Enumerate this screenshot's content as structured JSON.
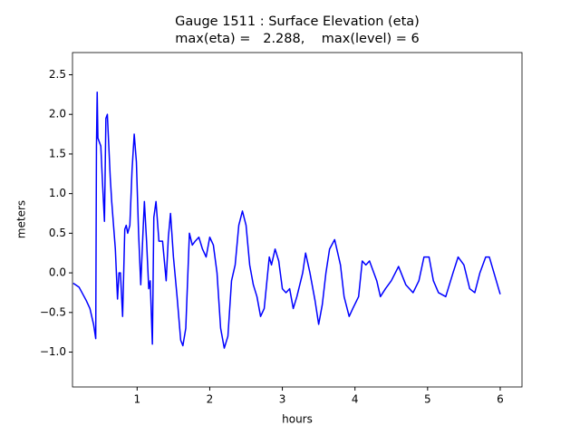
{
  "chart_data": {
    "type": "line",
    "title": "Gauge 1511 : Surface Elevation (eta)",
    "subtitle": "max(eta) =   2.288,    max(level) = 6",
    "xlabel": "hours",
    "ylabel": "meters",
    "xlim": [
      0.11,
      6.3
    ],
    "ylim": [
      -1.44,
      2.78
    ],
    "xticks": [
      1,
      2,
      3,
      4,
      5,
      6
    ],
    "yticks": [
      {
        "value": -1,
        "label": "−1.0"
      },
      {
        "value": -0.5,
        "label": "−0.5"
      },
      {
        "value": 0,
        "label": "0.0"
      },
      0.5,
      {
        "value": 1,
        "label": "1.0"
      },
      1.5,
      {
        "value": 2,
        "label": "2.0"
      },
      2.5
    ],
    "grid": false,
    "series": [
      {
        "color": "#0000ff",
        "x": [
          0.12,
          0.2,
          0.3,
          0.35,
          0.4,
          0.43,
          0.44,
          0.45,
          0.46,
          0.48,
          0.5,
          0.52,
          0.55,
          0.57,
          0.59,
          0.6,
          0.63,
          0.65,
          0.7,
          0.73,
          0.75,
          0.77,
          0.8,
          0.83,
          0.85,
          0.87,
          0.9,
          0.93,
          0.96,
          0.99,
          1.02,
          1.05,
          1.08,
          1.1,
          1.13,
          1.16,
          1.18,
          1.21,
          1.23,
          1.26,
          1.3,
          1.35,
          1.4,
          1.43,
          1.46,
          1.5,
          1.55,
          1.6,
          1.63,
          1.67,
          1.72,
          1.76,
          1.8,
          1.85,
          1.9,
          1.95,
          2.0,
          2.05,
          2.1,
          2.15,
          2.2,
          2.25,
          2.3,
          2.35,
          2.4,
          2.45,
          2.5,
          2.55,
          2.6,
          2.65,
          2.7,
          2.75,
          2.82,
          2.85,
          2.9,
          2.95,
          3.0,
          3.05,
          3.1,
          3.15,
          3.2,
          3.28,
          3.32,
          3.38,
          3.45,
          3.5,
          3.55,
          3.6,
          3.65,
          3.72,
          3.8,
          3.85,
          3.92,
          3.97,
          4.05,
          4.1,
          4.15,
          4.2,
          4.3,
          4.35,
          4.42,
          4.5,
          4.6,
          4.7,
          4.8,
          4.88,
          4.95,
          5.02,
          5.08,
          5.15,
          5.25,
          5.35,
          5.42,
          5.5,
          5.58,
          5.65,
          5.72,
          5.8,
          5.85,
          5.93,
          6.0
        ],
        "values": [
          -0.13,
          -0.18,
          -0.35,
          -0.45,
          -0.65,
          -0.83,
          1.6,
          2.28,
          1.7,
          1.65,
          1.6,
          1.2,
          0.65,
          1.95,
          2.0,
          1.8,
          1.2,
          0.9,
          0.3,
          -0.33,
          0.0,
          0.0,
          -0.55,
          0.55,
          0.6,
          0.5,
          0.6,
          1.3,
          1.75,
          1.4,
          0.5,
          -0.15,
          0.5,
          0.9,
          0.4,
          -0.2,
          -0.1,
          -0.9,
          0.7,
          0.9,
          0.4,
          0.4,
          -0.1,
          0.45,
          0.75,
          0.2,
          -0.3,
          -0.85,
          -0.92,
          -0.7,
          0.5,
          0.35,
          0.4,
          0.45,
          0.3,
          0.2,
          0.45,
          0.35,
          0.0,
          -0.7,
          -0.95,
          -0.8,
          -0.1,
          0.1,
          0.6,
          0.78,
          0.6,
          0.1,
          -0.15,
          -0.3,
          -0.55,
          -0.45,
          0.2,
          0.1,
          0.3,
          0.15,
          -0.2,
          -0.25,
          -0.2,
          -0.45,
          -0.3,
          0.0,
          0.25,
          0.0,
          -0.35,
          -0.65,
          -0.4,
          0.0,
          0.3,
          0.42,
          0.1,
          -0.3,
          -0.55,
          -0.45,
          -0.3,
          0.15,
          0.1,
          0.15,
          -0.1,
          -0.3,
          -0.2,
          -0.1,
          0.08,
          -0.15,
          -0.25,
          -0.1,
          0.2,
          0.2,
          -0.1,
          -0.25,
          -0.3,
          0.0,
          0.2,
          0.1,
          -0.2,
          -0.25,
          0.0,
          0.2,
          0.2,
          -0.05,
          -0.27
        ]
      }
    ]
  }
}
